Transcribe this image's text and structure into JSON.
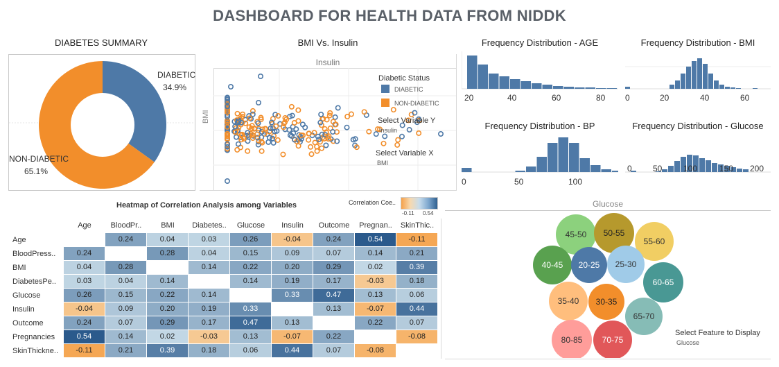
{
  "title": "DASHBOARD FOR HEALTH DATA FROM NIDDK",
  "summary": {
    "title": "DIABETES SUMMARY",
    "slices": [
      {
        "label": "DIABETIC",
        "pct_label": "34.9%",
        "value": 34.9,
        "color": "#4e79a7"
      },
      {
        "label": "NON-DIABETIC",
        "pct_label": "65.1%",
        "value": 65.1,
        "color": "#f28e2b"
      }
    ]
  },
  "scatter": {
    "title": "BMI Vs. Insulin",
    "x_header": "Insulin",
    "y_label": "BMI",
    "legend_title": "Diabetic Status",
    "legend": [
      {
        "label": "DIABETIC",
        "color": "#4e79a7"
      },
      {
        "label": "NON-DIABETIC",
        "color": "#f28e2b"
      }
    ],
    "select_y_label": "Select Variable Y",
    "select_y_value": "Insulin",
    "select_x_label": "Select Variable X",
    "select_x_value": "BMI"
  },
  "histograms": {
    "age": {
      "title": "Frequency Distribution - AGE",
      "ticks": [
        "20",
        "40",
        "60",
        "80"
      ]
    },
    "bmi": {
      "title": "Frequency Distribution - BMI",
      "ticks": [
        "0",
        "20",
        "40",
        "60"
      ]
    },
    "bp": {
      "title": "Frequency Distribution - BP",
      "ticks": [
        "0",
        "50",
        "100"
      ]
    },
    "glucose": {
      "title": "Frequency Distribution - Glucose",
      "ticks": [
        "0",
        "50",
        "100",
        "150",
        "200"
      ]
    }
  },
  "heatmap": {
    "title": "Heatmap of Correlation Analysis among  Variables",
    "legend_title": "Correlation Coe..",
    "legend_min": "-0.11",
    "legend_max": "0.54",
    "columns": [
      "Age",
      "BloodPr..",
      "BMI",
      "Diabetes..",
      "Glucose",
      "Insulin",
      "Outcome",
      "Pregnan..",
      "SkinThic.."
    ],
    "rows": [
      "Age",
      "BloodPress..",
      "BMI",
      "DiabetesPe..",
      "Glucose",
      "Insulin",
      "Outcome",
      "Pregnancies",
      "SkinThickne.."
    ],
    "values": [
      [
        null,
        "0.24",
        "0.04",
        "0.03",
        "0.26",
        "-0.04",
        "0.24",
        "0.54",
        "-0.11"
      ],
      [
        "0.24",
        null,
        "0.28",
        "0.04",
        "0.15",
        "0.09",
        "0.07",
        "0.14",
        "0.21"
      ],
      [
        "0.04",
        "0.28",
        null,
        "0.14",
        "0.22",
        "0.20",
        "0.29",
        "0.02",
        "0.39"
      ],
      [
        "0.03",
        "0.04",
        "0.14",
        null,
        "0.14",
        "0.19",
        "0.17",
        "-0.03",
        "0.18"
      ],
      [
        "0.26",
        "0.15",
        "0.22",
        "0.14",
        null,
        "0.33",
        "0.47",
        "0.13",
        "0.06"
      ],
      [
        "-0.04",
        "0.09",
        "0.20",
        "0.19",
        "0.33",
        null,
        "0.13",
        "-0.07",
        "0.44"
      ],
      [
        "0.24",
        "0.07",
        "0.29",
        "0.17",
        "0.47",
        "0.13",
        null,
        "0.22",
        "0.07"
      ],
      [
        "0.54",
        "0.14",
        "0.02",
        "-0.03",
        "0.13",
        "-0.07",
        "0.22",
        null,
        "-0.08"
      ],
      [
        "-0.11",
        "0.21",
        "0.39",
        "0.18",
        "0.06",
        "0.44",
        "0.07",
        "-0.08",
        null
      ]
    ]
  },
  "bubbles": {
    "header": "Glucose",
    "select_label": "Select Feature to Display",
    "select_value": "Glucose",
    "items": [
      {
        "label": "45-50",
        "color": "#8cd17d",
        "text_color": "#333"
      },
      {
        "label": "50-55",
        "color": "#b6992d",
        "text_color": "#222"
      },
      {
        "label": "55-60",
        "color": "#f1ce63",
        "text_color": "#333"
      },
      {
        "label": "40-45",
        "color": "#59a14f",
        "text_color": "#fff"
      },
      {
        "label": "20-25",
        "color": "#4e79a7",
        "text_color": "#fff"
      },
      {
        "label": "25-30",
        "color": "#a0cbe8",
        "text_color": "#333"
      },
      {
        "label": "60-65",
        "color": "#499894",
        "text_color": "#fff"
      },
      {
        "label": "35-40",
        "color": "#ffbe7d",
        "text_color": "#333"
      },
      {
        "label": "30-35",
        "color": "#f28e2b",
        "text_color": "#222"
      },
      {
        "label": "65-70",
        "color": "#86bcb6",
        "text_color": "#333"
      },
      {
        "label": "80-85",
        "color": "#ff9d9a",
        "text_color": "#333"
      },
      {
        "label": "70-75",
        "color": "#e15759",
        "text_color": "#fff"
      }
    ]
  }
}
